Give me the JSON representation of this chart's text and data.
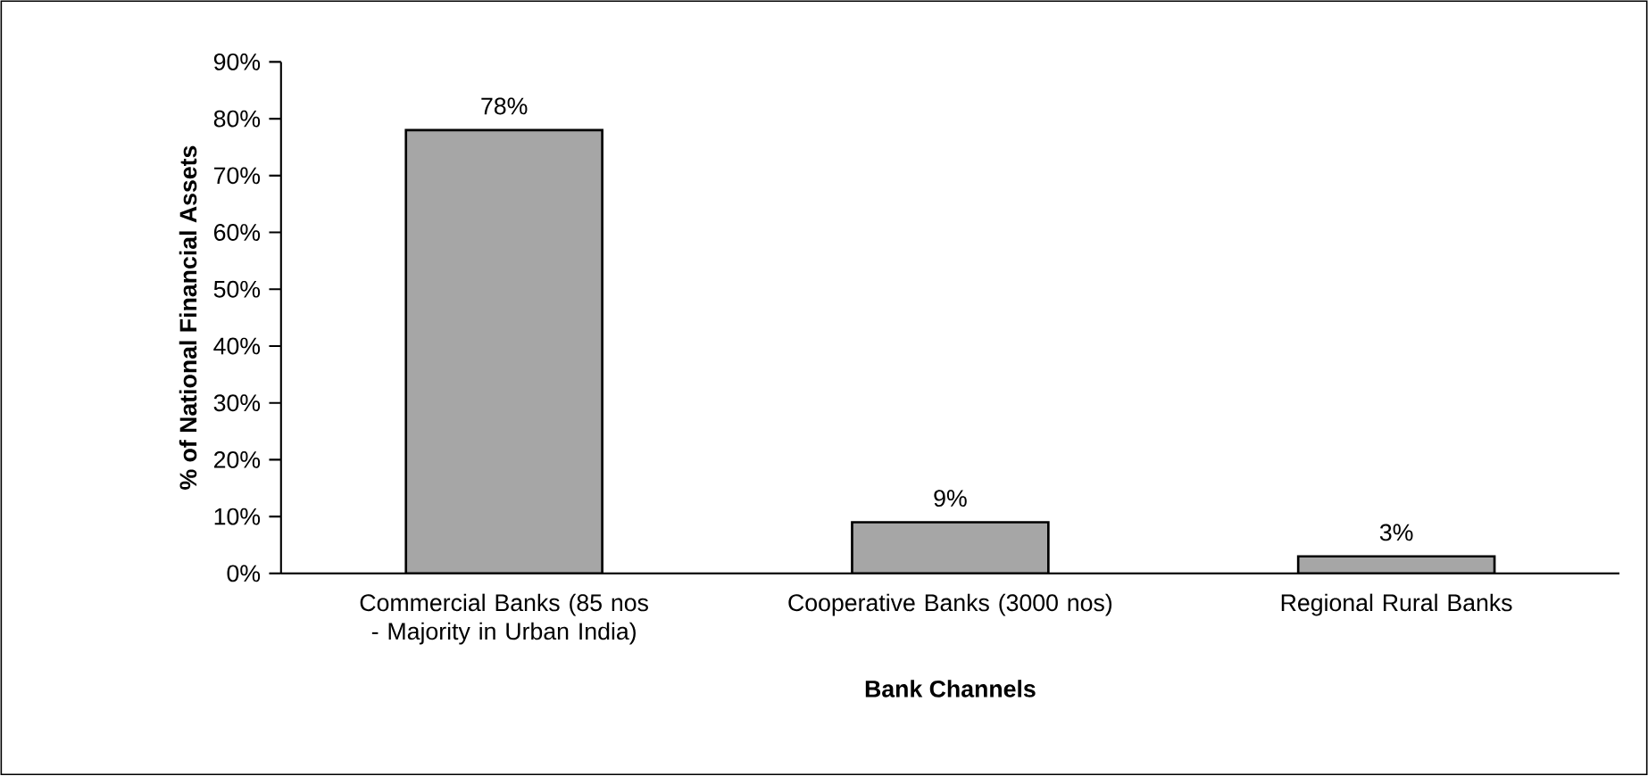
{
  "chart_data": {
    "type": "bar",
    "xlabel": "Bank Channels",
    "ylabel": "% of National Financial Assets",
    "categories": [
      "Commercial Banks (85 nos - Majority in Urban India)",
      "Cooperative Banks (3000 nos)",
      "Regional Rural Banks"
    ],
    "values": [
      78,
      9,
      3
    ],
    "color": "#a6a6a6",
    "value_labels": [
      "78%",
      "9%",
      "3%"
    ],
    "ylim": [
      0,
      90
    ],
    "yticks": [
      {
        "value": 0,
        "label": "0%"
      },
      {
        "value": 10,
        "label": "10%"
      },
      {
        "value": 20,
        "label": "20%"
      },
      {
        "value": 30,
        "label": "30%"
      },
      {
        "value": 40,
        "label": "40%"
      },
      {
        "value": 50,
        "label": "50%"
      },
      {
        "value": 60,
        "label": "60%"
      },
      {
        "value": 70,
        "label": "70%"
      },
      {
        "value": 80,
        "label": "80%"
      },
      {
        "value": 90,
        "label": "90%"
      }
    ],
    "grid": false
  }
}
